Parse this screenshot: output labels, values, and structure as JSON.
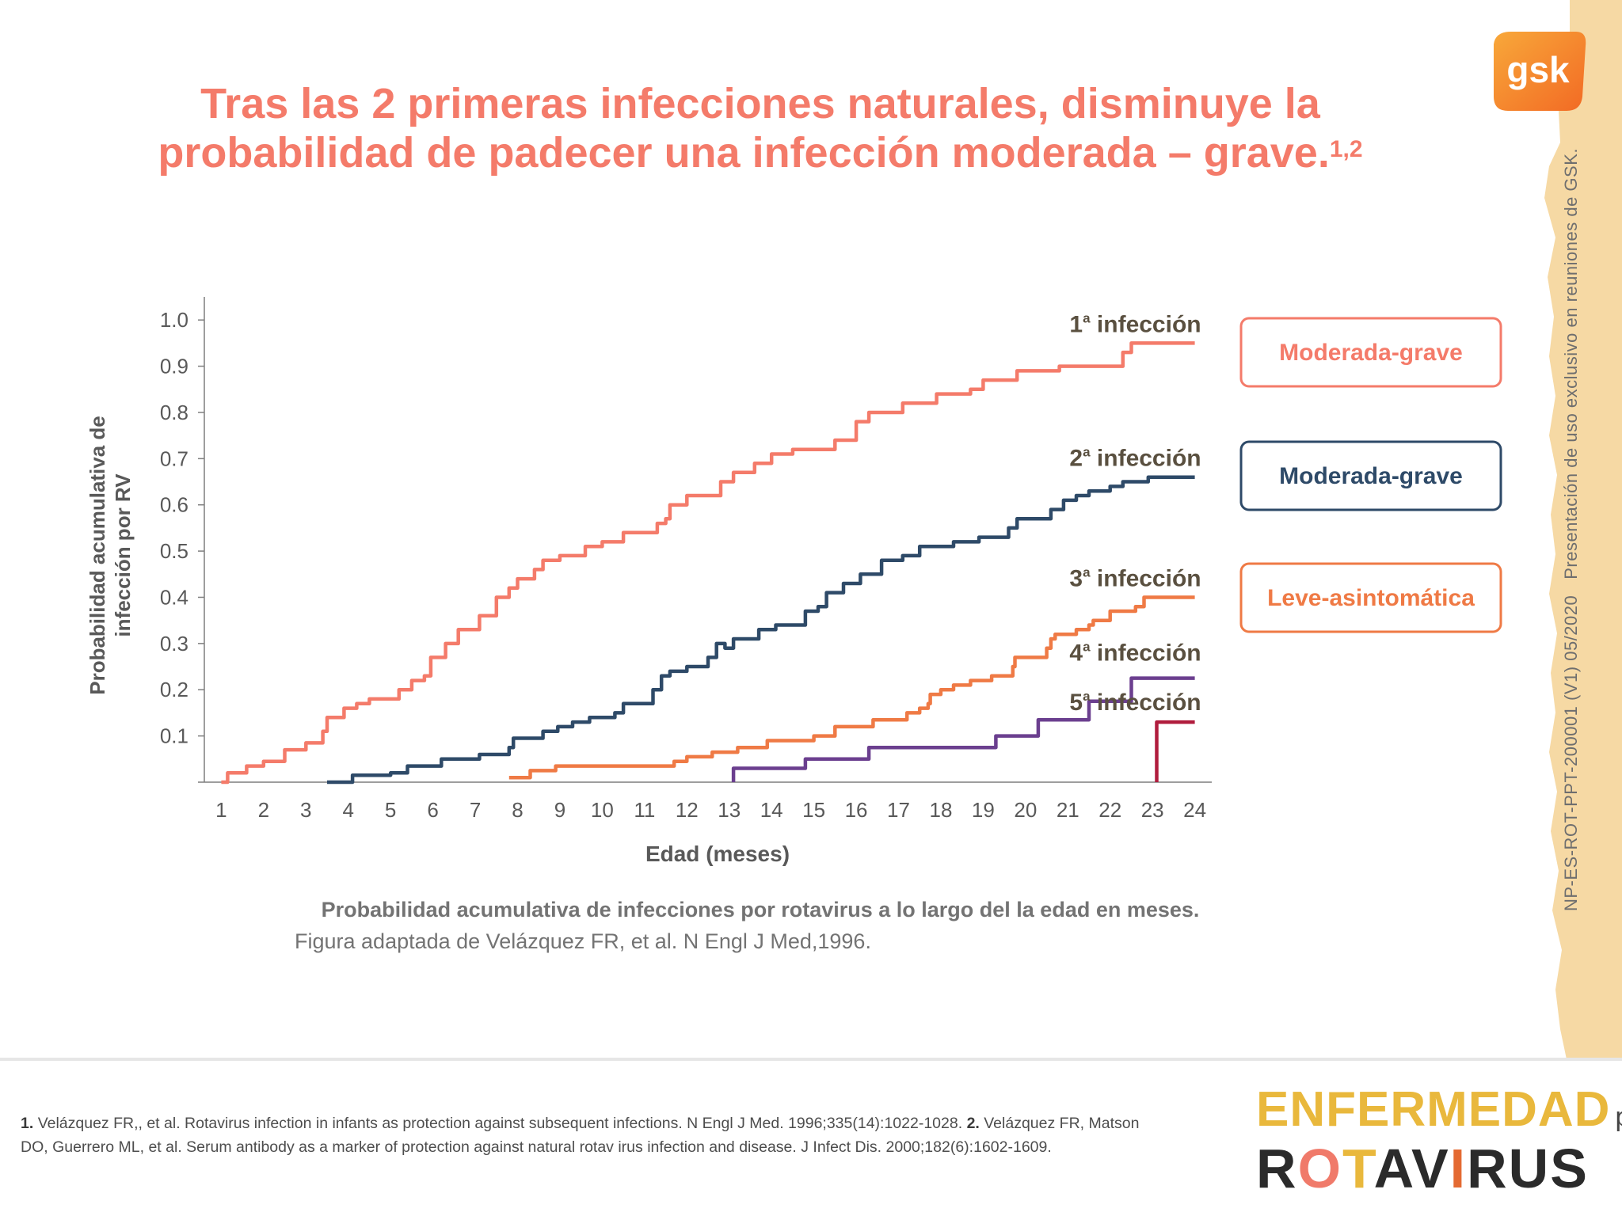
{
  "title": {
    "line1": "Tras las 2 primeras infecciones naturales, disminuye la",
    "line2": "probabilidad de padecer una infección moderada – grave.",
    "refs_sup": "1,2"
  },
  "logo": {
    "text": "gsk"
  },
  "vertical_note": {
    "code": "NP-ES-ROT-PPT-200001 (V1) 05/2020",
    "text": "Presentación de uso exclusivo en reuniones de GSK."
  },
  "legend_boxes": [
    {
      "label": "Moderada-grave",
      "color": "#f47b6a"
    },
    {
      "label": "Moderada-grave",
      "color": "#2e4a68"
    },
    {
      "label": "Leve-asintomática",
      "color": "#ef7a45"
    }
  ],
  "caption": {
    "bold": "Probabilidad acumulativa de infecciones por rotavirus a lo largo del la edad en meses.",
    "normal": "Figura adaptada de Velázquez FR, et al. N Engl J Med,1996."
  },
  "references": {
    "r1_num": "1.",
    "r1_text": "Velázquez FR,, et al. Rotavirus infection in infants as protection against subsequent infections. N Engl J Med. 1996;335(14):1022-1028.",
    "r2_num": "2.",
    "r2_text": "Velázquez FR, Matson DO, Guerrero ML, et al. Serum antibody as a marker of protection against natural rotav irus infection and disease. J Infect Dis. 2000;182(6):1602-1609."
  },
  "brand": {
    "top": "ENFERMEDAD",
    "por": "por",
    "bottom": "ROTAVIRUS"
  },
  "chart_data": {
    "type": "line",
    "step": true,
    "ylabel_line1": "Probabilidad acumulativa  de",
    "ylabel_line2": "infección por RV",
    "xlabel": "Edad (meses)",
    "xlim": [
      0.6,
      24.4
    ],
    "ylim": [
      0,
      1.05
    ],
    "x_ticks": [
      1,
      2,
      3,
      4,
      5,
      6,
      7,
      8,
      9,
      10,
      11,
      12,
      13,
      14,
      15,
      16,
      17,
      18,
      19,
      20,
      21,
      22,
      23,
      24
    ],
    "y_ticks": [
      0.1,
      0.2,
      0.3,
      0.4,
      0.5,
      0.6,
      0.7,
      0.8,
      0.9,
      1.0
    ],
    "y_tick_labels": [
      "0.1",
      "0.2",
      "0.3",
      "0.4",
      "0.5",
      "0.6",
      "0.7",
      "0.8",
      "0.9",
      "1.0"
    ],
    "series": [
      {
        "name": "1ª infección",
        "num": "1",
        "sup": "a",
        "label_text": " infección",
        "color": "#f47b6a",
        "points": [
          [
            1,
            0.0
          ],
          [
            1.15,
            0.02
          ],
          [
            1.45,
            0.02
          ],
          [
            1.6,
            0.035
          ],
          [
            1.85,
            0.035
          ],
          [
            2,
            0.045
          ],
          [
            2.3,
            0.045
          ],
          [
            2.5,
            0.07
          ],
          [
            2.8,
            0.07
          ],
          [
            3,
            0.085
          ],
          [
            3.2,
            0.085
          ],
          [
            3.4,
            0.11
          ],
          [
            3.5,
            0.14
          ],
          [
            3.8,
            0.14
          ],
          [
            3.9,
            0.16
          ],
          [
            4.05,
            0.16
          ],
          [
            4.2,
            0.17
          ],
          [
            4.3,
            0.17
          ],
          [
            4.5,
            0.18
          ],
          [
            5.1,
            0.18
          ],
          [
            5.2,
            0.2
          ],
          [
            5.5,
            0.22
          ],
          [
            5.8,
            0.23
          ],
          [
            5.95,
            0.27
          ],
          [
            6.15,
            0.27
          ],
          [
            6.3,
            0.3
          ],
          [
            6.6,
            0.33
          ],
          [
            7,
            0.33
          ],
          [
            7.1,
            0.36
          ],
          [
            7.3,
            0.36
          ],
          [
            7.5,
            0.4
          ],
          [
            7.8,
            0.42
          ],
          [
            8,
            0.44
          ],
          [
            8.2,
            0.44
          ],
          [
            8.4,
            0.46
          ],
          [
            8.6,
            0.48
          ],
          [
            9,
            0.49
          ],
          [
            9.4,
            0.49
          ],
          [
            9.6,
            0.51
          ],
          [
            9.8,
            0.51
          ],
          [
            10,
            0.52
          ],
          [
            10.3,
            0.52
          ],
          [
            10.5,
            0.54
          ],
          [
            11,
            0.54
          ],
          [
            11.3,
            0.56
          ],
          [
            11.5,
            0.57
          ],
          [
            11.6,
            0.6
          ],
          [
            11.8,
            0.6
          ],
          [
            12,
            0.62
          ],
          [
            12.6,
            0.62
          ],
          [
            12.8,
            0.65
          ],
          [
            13,
            0.65
          ],
          [
            13.1,
            0.67
          ],
          [
            13.5,
            0.67
          ],
          [
            13.6,
            0.69
          ],
          [
            13.8,
            0.69
          ],
          [
            14,
            0.71
          ],
          [
            14.2,
            0.71
          ],
          [
            14.5,
            0.72
          ],
          [
            15.3,
            0.72
          ],
          [
            15.5,
            0.74
          ],
          [
            15.8,
            0.74
          ],
          [
            16,
            0.78
          ],
          [
            16.3,
            0.8
          ],
          [
            16.9,
            0.8
          ],
          [
            17.1,
            0.82
          ],
          [
            17.7,
            0.82
          ],
          [
            17.9,
            0.84
          ],
          [
            18.5,
            0.84
          ],
          [
            18.7,
            0.85
          ],
          [
            18.9,
            0.85
          ],
          [
            19,
            0.87
          ],
          [
            19.6,
            0.87
          ],
          [
            19.8,
            0.89
          ],
          [
            20.6,
            0.89
          ],
          [
            20.8,
            0.9
          ],
          [
            21.1,
            0.9
          ],
          [
            21.3,
            0.9
          ],
          [
            22.2,
            0.9
          ],
          [
            22.3,
            0.93
          ],
          [
            22.5,
            0.95
          ],
          [
            24,
            0.95
          ]
        ]
      },
      {
        "name": "2ª infección",
        "num": "2",
        "sup": "a",
        "label_text": " infección",
        "color": "#2e4a68",
        "points": [
          [
            3.5,
            0.0
          ],
          [
            4,
            0.0
          ],
          [
            4.1,
            0.015
          ],
          [
            4.6,
            0.015
          ],
          [
            5,
            0.02
          ],
          [
            5.3,
            0.02
          ],
          [
            5.4,
            0.035
          ],
          [
            6.1,
            0.035
          ],
          [
            6.2,
            0.05
          ],
          [
            7,
            0.05
          ],
          [
            7.1,
            0.06
          ],
          [
            7.6,
            0.06
          ],
          [
            7.8,
            0.075
          ],
          [
            7.9,
            0.095
          ],
          [
            8.5,
            0.095
          ],
          [
            8.6,
            0.11
          ],
          [
            8.9,
            0.11
          ],
          [
            8.95,
            0.12
          ],
          [
            9.15,
            0.12
          ],
          [
            9.3,
            0.13
          ],
          [
            9.6,
            0.13
          ],
          [
            9.7,
            0.14
          ],
          [
            10.1,
            0.14
          ],
          [
            10.3,
            0.15
          ],
          [
            10.5,
            0.17
          ],
          [
            11,
            0.17
          ],
          [
            11.2,
            0.2
          ],
          [
            11.4,
            0.23
          ],
          [
            11.6,
            0.24
          ],
          [
            12,
            0.25
          ],
          [
            12.5,
            0.27
          ],
          [
            12.7,
            0.3
          ],
          [
            12.9,
            0.29
          ],
          [
            13.1,
            0.31
          ],
          [
            13.5,
            0.31
          ],
          [
            13.7,
            0.33
          ],
          [
            14,
            0.33
          ],
          [
            14.1,
            0.34
          ],
          [
            14.4,
            0.34
          ],
          [
            14.8,
            0.37
          ],
          [
            15.1,
            0.38
          ],
          [
            15.3,
            0.41
          ],
          [
            15.5,
            0.41
          ],
          [
            15.7,
            0.43
          ],
          [
            15.9,
            0.43
          ],
          [
            16.1,
            0.45
          ],
          [
            16.5,
            0.45
          ],
          [
            16.6,
            0.48
          ],
          [
            16.9,
            0.48
          ],
          [
            17.1,
            0.49
          ],
          [
            17.3,
            0.49
          ],
          [
            17.5,
            0.51
          ],
          [
            18.1,
            0.51
          ],
          [
            18.3,
            0.52
          ],
          [
            18.7,
            0.52
          ],
          [
            18.9,
            0.53
          ],
          [
            19.5,
            0.53
          ],
          [
            19.6,
            0.55
          ],
          [
            19.8,
            0.57
          ],
          [
            20.4,
            0.57
          ],
          [
            20.6,
            0.59
          ],
          [
            20.8,
            0.59
          ],
          [
            20.9,
            0.61
          ],
          [
            21.1,
            0.61
          ],
          [
            21.2,
            0.62
          ],
          [
            21.4,
            0.62
          ],
          [
            21.5,
            0.63
          ],
          [
            21.9,
            0.63
          ],
          [
            22,
            0.64
          ],
          [
            22.2,
            0.64
          ],
          [
            22.3,
            0.65
          ],
          [
            22.8,
            0.65
          ],
          [
            22.9,
            0.66
          ],
          [
            24,
            0.66
          ]
        ]
      },
      {
        "name": "3ª infección",
        "num": "3",
        "sup": "a",
        "label_text": " infección",
        "color": "#ef7a45",
        "points": [
          [
            7.8,
            0.01
          ],
          [
            8.2,
            0.01
          ],
          [
            8.3,
            0.025
          ],
          [
            8.8,
            0.025
          ],
          [
            8.9,
            0.035
          ],
          [
            11.5,
            0.035
          ],
          [
            11.7,
            0.045
          ],
          [
            12,
            0.055
          ],
          [
            12.4,
            0.055
          ],
          [
            12.6,
            0.065
          ],
          [
            13.1,
            0.065
          ],
          [
            13.2,
            0.075
          ],
          [
            13.8,
            0.075
          ],
          [
            13.9,
            0.09
          ],
          [
            14.9,
            0.09
          ],
          [
            15,
            0.1
          ],
          [
            15.4,
            0.1
          ],
          [
            15.5,
            0.12
          ],
          [
            16.3,
            0.12
          ],
          [
            16.4,
            0.135
          ],
          [
            17.1,
            0.135
          ],
          [
            17.2,
            0.15
          ],
          [
            17.5,
            0.16
          ],
          [
            17.7,
            0.17
          ],
          [
            17.75,
            0.19
          ],
          [
            17.9,
            0.19
          ],
          [
            18,
            0.2
          ],
          [
            18.2,
            0.2
          ],
          [
            18.3,
            0.21
          ],
          [
            18.5,
            0.21
          ],
          [
            18.7,
            0.22
          ],
          [
            19.1,
            0.22
          ],
          [
            19.2,
            0.23
          ],
          [
            19.5,
            0.23
          ],
          [
            19.7,
            0.25
          ],
          [
            19.75,
            0.27
          ],
          [
            20.4,
            0.27
          ],
          [
            20.5,
            0.29
          ],
          [
            20.6,
            0.31
          ],
          [
            20.7,
            0.32
          ],
          [
            21.1,
            0.32
          ],
          [
            21.2,
            0.33
          ],
          [
            21.4,
            0.33
          ],
          [
            21.5,
            0.34
          ],
          [
            21.6,
            0.35
          ],
          [
            21.9,
            0.35
          ],
          [
            22,
            0.37
          ],
          [
            22.5,
            0.37
          ],
          [
            22.6,
            0.38
          ],
          [
            22.7,
            0.38
          ],
          [
            22.8,
            0.4
          ],
          [
            24,
            0.4
          ]
        ]
      },
      {
        "name": "4ª infección",
        "num": "4",
        "sup": "a",
        "label_text": " infección",
        "color": "#6b3f8f",
        "points": [
          [
            13.1,
            0.0
          ],
          [
            13.1,
            0.03
          ],
          [
            14.8,
            0.03
          ],
          [
            14.8,
            0.05
          ],
          [
            16.3,
            0.05
          ],
          [
            16.3,
            0.075
          ],
          [
            19.1,
            0.075
          ],
          [
            19.3,
            0.075
          ],
          [
            19.3,
            0.1
          ],
          [
            20.3,
            0.1
          ],
          [
            20.3,
            0.135
          ],
          [
            21.5,
            0.135
          ],
          [
            21.5,
            0.175
          ],
          [
            22.5,
            0.175
          ],
          [
            22.5,
            0.225
          ],
          [
            24,
            0.225
          ]
        ]
      },
      {
        "name": "5ª infección",
        "num": "5",
        "sup": "a",
        "label_text": " infección",
        "color": "#b01c3d",
        "points": [
          [
            23.1,
            0.0
          ],
          [
            23.1,
            0.13
          ],
          [
            24,
            0.13
          ]
        ]
      }
    ]
  }
}
